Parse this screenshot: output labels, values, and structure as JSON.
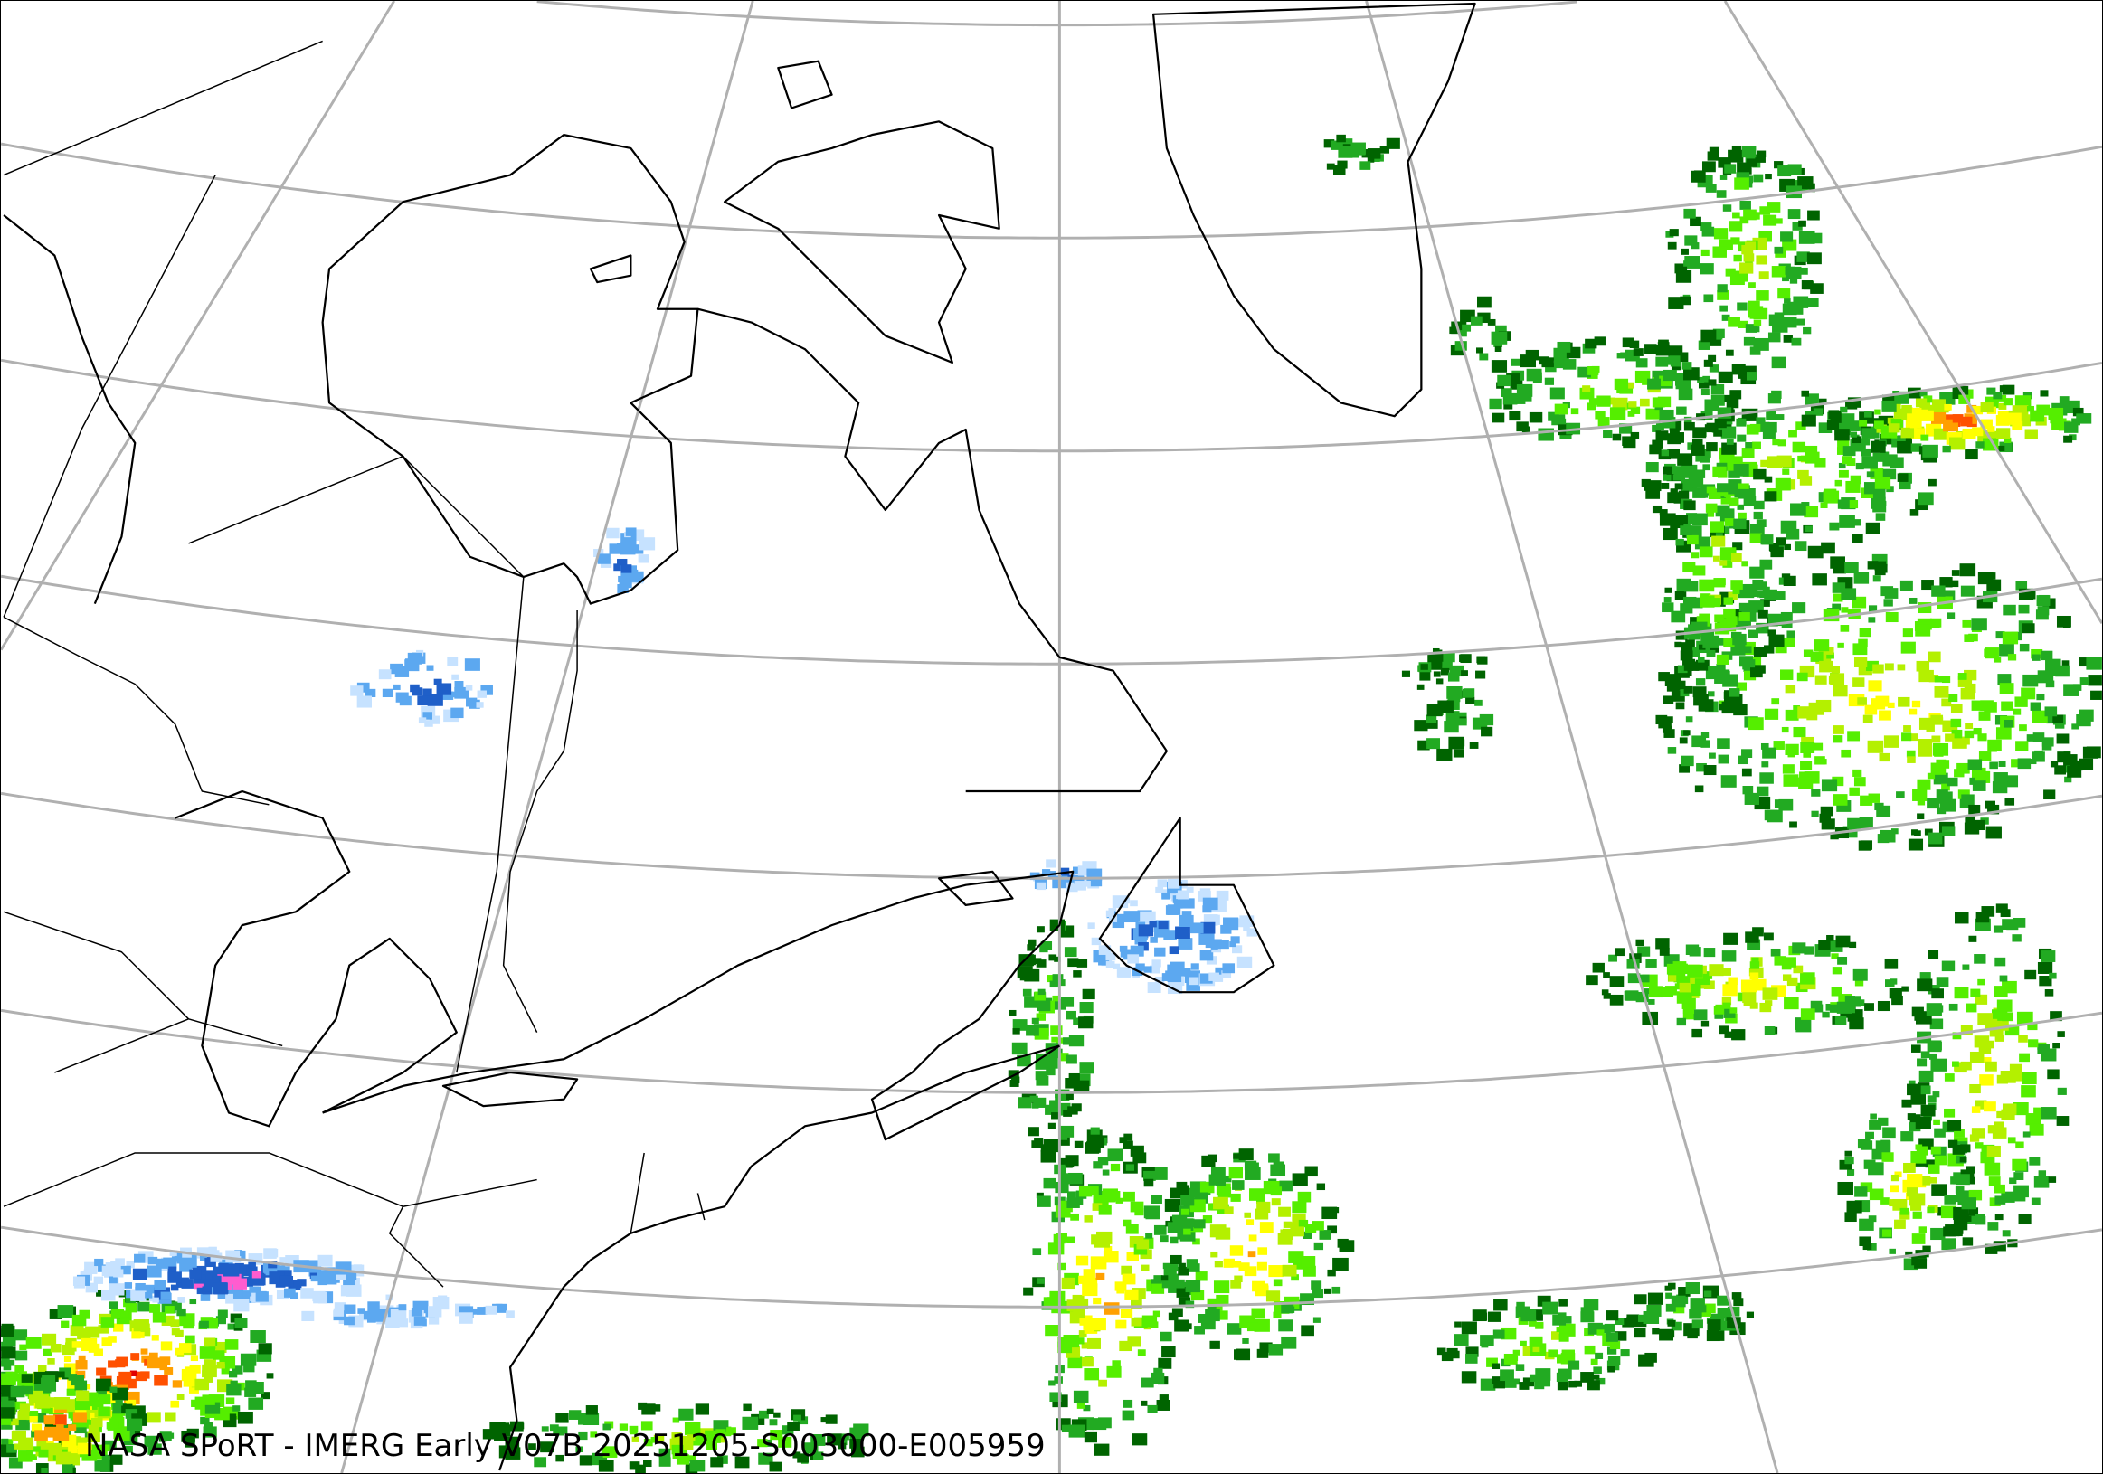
{
  "caption": "NASA SPoRT - IMERG Early V07B 20251205-S003000-E005959",
  "map": {
    "region": "Northeastern North America and North Atlantic",
    "layers": [
      "graticule",
      "coastlines",
      "political-boundaries",
      "precipitation-rate"
    ],
    "colors": {
      "graticule": "#b0b0b0",
      "coastline": "#000000",
      "snow_light": "#c6e2ff",
      "snow_moderate": "#5ca8f0",
      "snow_heavy": "#1f5fc8",
      "snow_intense": "#ff5ccf",
      "rain_light": "#006400",
      "rain_light2": "#22aa22",
      "rain_moderate": "#55ee00",
      "rain_moderate2": "#b4f000",
      "rain_heavy": "#ffff00",
      "rain_heavy2": "#ffa000",
      "rain_intense": "#ff5000",
      "rain_extreme": "#e00000"
    }
  }
}
